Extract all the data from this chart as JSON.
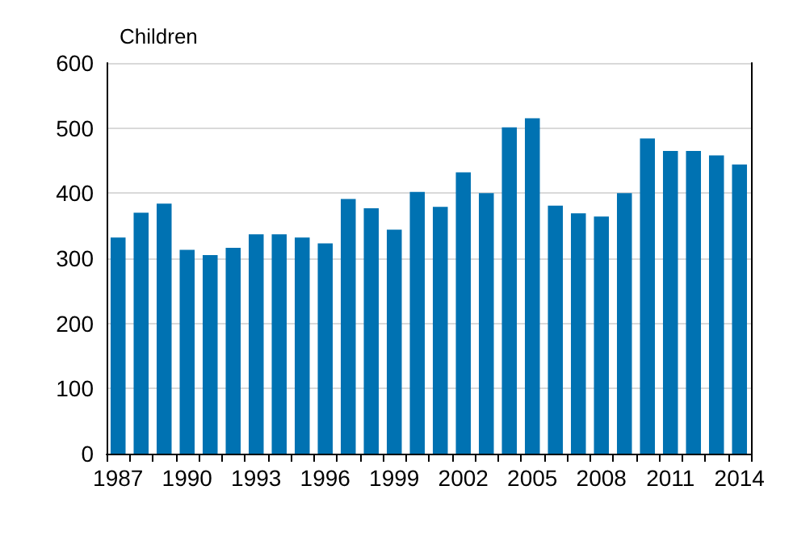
{
  "chart_data": {
    "type": "bar",
    "ylabel": "Children",
    "categories": [
      "1987",
      null,
      null,
      "1990",
      null,
      null,
      "1993",
      null,
      null,
      "1996",
      null,
      null,
      "1999",
      null,
      null,
      "2002",
      null,
      null,
      "2005",
      null,
      null,
      "2008",
      null,
      null,
      "2011",
      null,
      null,
      "2014"
    ],
    "values": [
      332,
      370,
      384,
      313,
      305,
      316,
      337,
      337,
      332,
      323,
      391,
      377,
      344,
      402,
      379,
      432,
      400,
      501,
      515,
      381,
      369,
      364,
      400,
      484,
      465,
      465,
      458,
      444
    ],
    "color": "#0072b2",
    "ylim": [
      0,
      600
    ],
    "yticks": [
      0,
      100,
      200,
      300,
      400,
      500,
      600
    ],
    "grid": "y"
  }
}
